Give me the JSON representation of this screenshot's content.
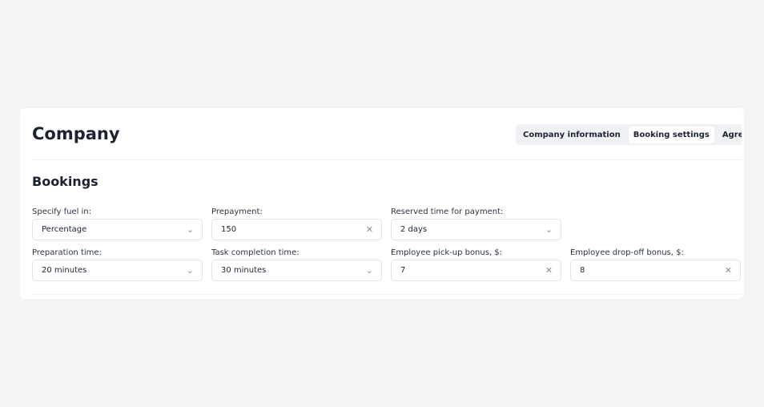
{
  "header": {
    "title": "Company",
    "tabs": [
      {
        "label": "Company information"
      },
      {
        "label": "Booking settings",
        "active": true
      },
      {
        "label": "Agreement"
      }
    ]
  },
  "section": {
    "title": "Bookings"
  },
  "fields": [
    {
      "label": "Specify fuel in:",
      "value": "Percentage",
      "type": "select"
    },
    {
      "label": "Prepayment:",
      "value": "150",
      "type": "input"
    },
    {
      "label": "Reserved time for payment:",
      "value": "2 days",
      "type": "select"
    },
    {
      "label": "Preparation time:",
      "value": "20 minutes",
      "type": "select"
    },
    {
      "label": "Task completion time:",
      "value": "30 minutes",
      "type": "select"
    },
    {
      "label": "Employee pick-up bonus, $:",
      "value": "7",
      "type": "input"
    },
    {
      "label": "Employee drop-off bonus, $:",
      "value": "8",
      "type": "input"
    }
  ],
  "icons": {
    "select": "chevron-down-icon",
    "input": "clear-icon"
  }
}
